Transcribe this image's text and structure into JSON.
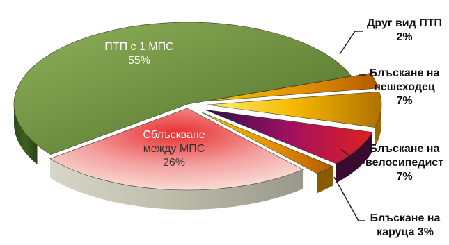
{
  "chart_data": {
    "type": "pie",
    "style": "3d-exploded",
    "slices": [
      {
        "name": "ПТП с 1 МПС",
        "pct_label": "55%",
        "value": 55,
        "color": "#6e8f3e"
      },
      {
        "name": "Блъскане на каруца",
        "pct_label": "3%",
        "value": 3,
        "color": "#c8a000"
      },
      {
        "name": "Блъскане на велосипедист",
        "pct_label": "7%",
        "value": 7,
        "color": "#d4a800"
      },
      {
        "name": "Блъскане на пешеходец",
        "pct_label": "7%",
        "value": 7,
        "color": "#5a1a5a"
      },
      {
        "name": "Друг вид ПТП",
        "pct_label": "2%",
        "value": 2,
        "color": "#e0b000"
      },
      {
        "name": "Сблъскване между МПС",
        "pct_label": "26%",
        "value": 26,
        "color": "#e84040"
      }
    ],
    "labels": {
      "ptp1": {
        "line1": "ПТП с 1 МПС",
        "pct": "55%"
      },
      "collision": {
        "line1": "Сблъскване",
        "line2": "между МПС",
        "pct": "26%"
      },
      "other": {
        "line1": "Друг вид ПТП",
        "pct": "2%"
      },
      "pedestrian": {
        "line1": "Блъскане на",
        "line2": "пешеходец",
        "pct": "7%"
      },
      "cyclist": {
        "line1": "Блъскане на",
        "line2": "велосипедист",
        "pct": "7%"
      },
      "cart": {
        "line1": "Блъскане на",
        "line2": "каруца 3%"
      }
    }
  }
}
